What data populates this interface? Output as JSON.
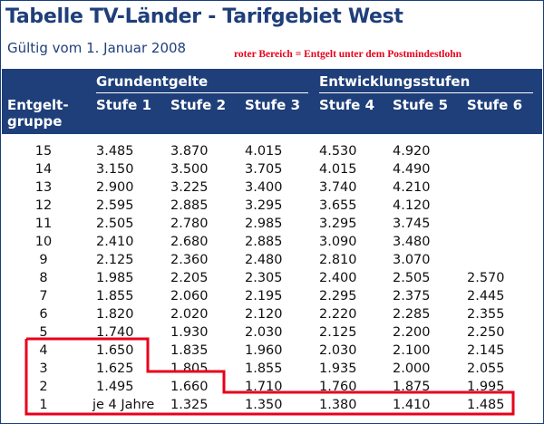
{
  "title": "Tabelle TV-Länder - Tarifgebiet West",
  "subtitle": "Gültig vom 1. Januar 2008",
  "note": "roter Bereich = Entgelt unter dem Postmindestlohn",
  "header": {
    "group_grund": "Grundentgelte",
    "group_entw": "Entwicklungsstufen",
    "col_gruppe_line1": "Entgelt-",
    "col_gruppe_line2": "gruppe",
    "col_stufe1": "Stufe 1",
    "col_stufe2": "Stufe 2",
    "col_stufe3": "Stufe 3",
    "col_stufe4": "Stufe 4",
    "col_stufe5": "Stufe 5",
    "col_stufe6": "Stufe 6"
  },
  "rows": [
    {
      "gruppe": "15",
      "s1": "3.485",
      "s2": "3.870",
      "s3": "4.015",
      "s4": "4.530",
      "s5": "4.920",
      "s6": ""
    },
    {
      "gruppe": "14",
      "s1": "3.150",
      "s2": "3.500",
      "s3": "3.705",
      "s4": "4.015",
      "s5": "4.490",
      "s6": ""
    },
    {
      "gruppe": "13",
      "s1": "2.900",
      "s2": "3.225",
      "s3": "3.400",
      "s4": "3.740",
      "s5": "4.210",
      "s6": ""
    },
    {
      "gruppe": "12",
      "s1": "2.595",
      "s2": "2.885",
      "s3": "3.295",
      "s4": "3.655",
      "s5": "4.120",
      "s6": ""
    },
    {
      "gruppe": "11",
      "s1": "2.505",
      "s2": "2.780",
      "s3": "2.985",
      "s4": "3.295",
      "s5": "3.745",
      "s6": ""
    },
    {
      "gruppe": "10",
      "s1": "2.410",
      "s2": "2.680",
      "s3": "2.885",
      "s4": "3.090",
      "s5": "3.480",
      "s6": ""
    },
    {
      "gruppe": "9",
      "s1": "2.125",
      "s2": "2.360",
      "s3": "2.480",
      "s4": "2.810",
      "s5": "3.070",
      "s6": ""
    },
    {
      "gruppe": "8",
      "s1": "1.985",
      "s2": "2.205",
      "s3": "2.305",
      "s4": "2.400",
      "s5": "2.505",
      "s6": "2.570"
    },
    {
      "gruppe": "7",
      "s1": "1.855",
      "s2": "2.060",
      "s3": "2.195",
      "s4": "2.295",
      "s5": "2.375",
      "s6": "2.445"
    },
    {
      "gruppe": "6",
      "s1": "1.820",
      "s2": "2.020",
      "s3": "2.120",
      "s4": "2.220",
      "s5": "2.285",
      "s6": "2.355"
    },
    {
      "gruppe": "5",
      "s1": "1.740",
      "s2": "1.930",
      "s3": "2.030",
      "s4": "2.125",
      "s5": "2.200",
      "s6": "2.250"
    },
    {
      "gruppe": "4",
      "s1": "1.650",
      "s2": "1.835",
      "s3": "1.960",
      "s4": "2.030",
      "s5": "2.100",
      "s6": "2.145"
    },
    {
      "gruppe": "3",
      "s1": "1.625",
      "s2": "1.805",
      "s3": "1.855",
      "s4": "1.935",
      "s5": "2.000",
      "s6": "2.055"
    },
    {
      "gruppe": "2",
      "s1": "1.495",
      "s2": "1.660",
      "s3": "1.710",
      "s4": "1.760",
      "s5": "1.875",
      "s6": "1.995"
    },
    {
      "gruppe": "1",
      "s1": "je 4 Jahre",
      "s2": "1.325",
      "s3": "1.350",
      "s4": "1.380",
      "s5": "1.410",
      "s6": "1.485"
    }
  ],
  "colors": {
    "header_bg": "#1f3f7a",
    "title": "#1f3f7a",
    "note": "#e8001a",
    "highlight": "#e8001a"
  }
}
